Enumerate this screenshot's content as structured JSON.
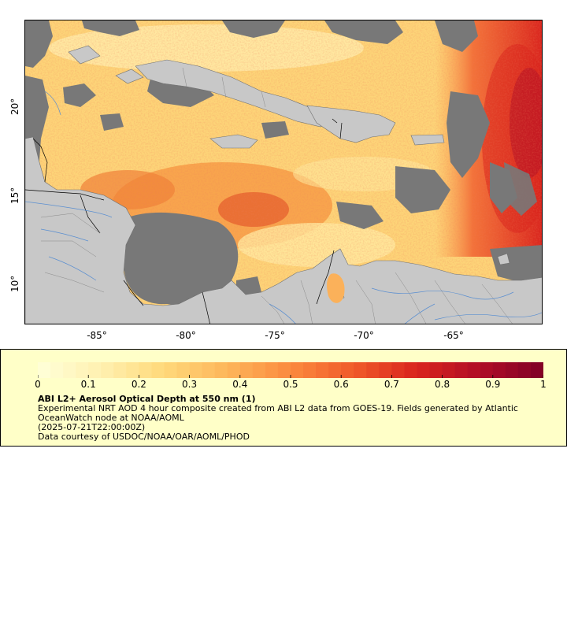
{
  "map": {
    "lat_labels": [
      "20°",
      "15°",
      "10°"
    ],
    "lon_labels": [
      "-85°",
      "-80°",
      "-75°",
      "-70°",
      "-65°"
    ],
    "colors": {
      "land": "#c8c8c8",
      "cloud": "#787878",
      "border": "#000000",
      "coast": "#707070",
      "river": "#5b8fd0"
    },
    "scale_stops": [
      "#ffffd9",
      "#fff0b0",
      "#ffd97a",
      "#fdb55a",
      "#fb8a3e",
      "#f05a2a",
      "#d9241e",
      "#b00d26",
      "#800026"
    ]
  },
  "colorbar": {
    "tick_labels": [
      "0",
      "0.1",
      "0.2",
      "0.3",
      "0.4",
      "0.5",
      "0.6",
      "0.7",
      "0.8",
      "0.9",
      "1"
    ]
  },
  "legend": {
    "title": "ABI L2+ Aerosol Optical Depth at 550 nm (1)",
    "description": "Experimental NRT AOD 4 hour composite created from ABI L2 data from GOES-19. Fields generated by Atlantic OceanWatch node at NOAA/AOML",
    "time": "(2025-07-21T22:00:00Z)",
    "credit": "Data courtesy of USDOC/NOAA/OAR/AOML/PHOD"
  }
}
